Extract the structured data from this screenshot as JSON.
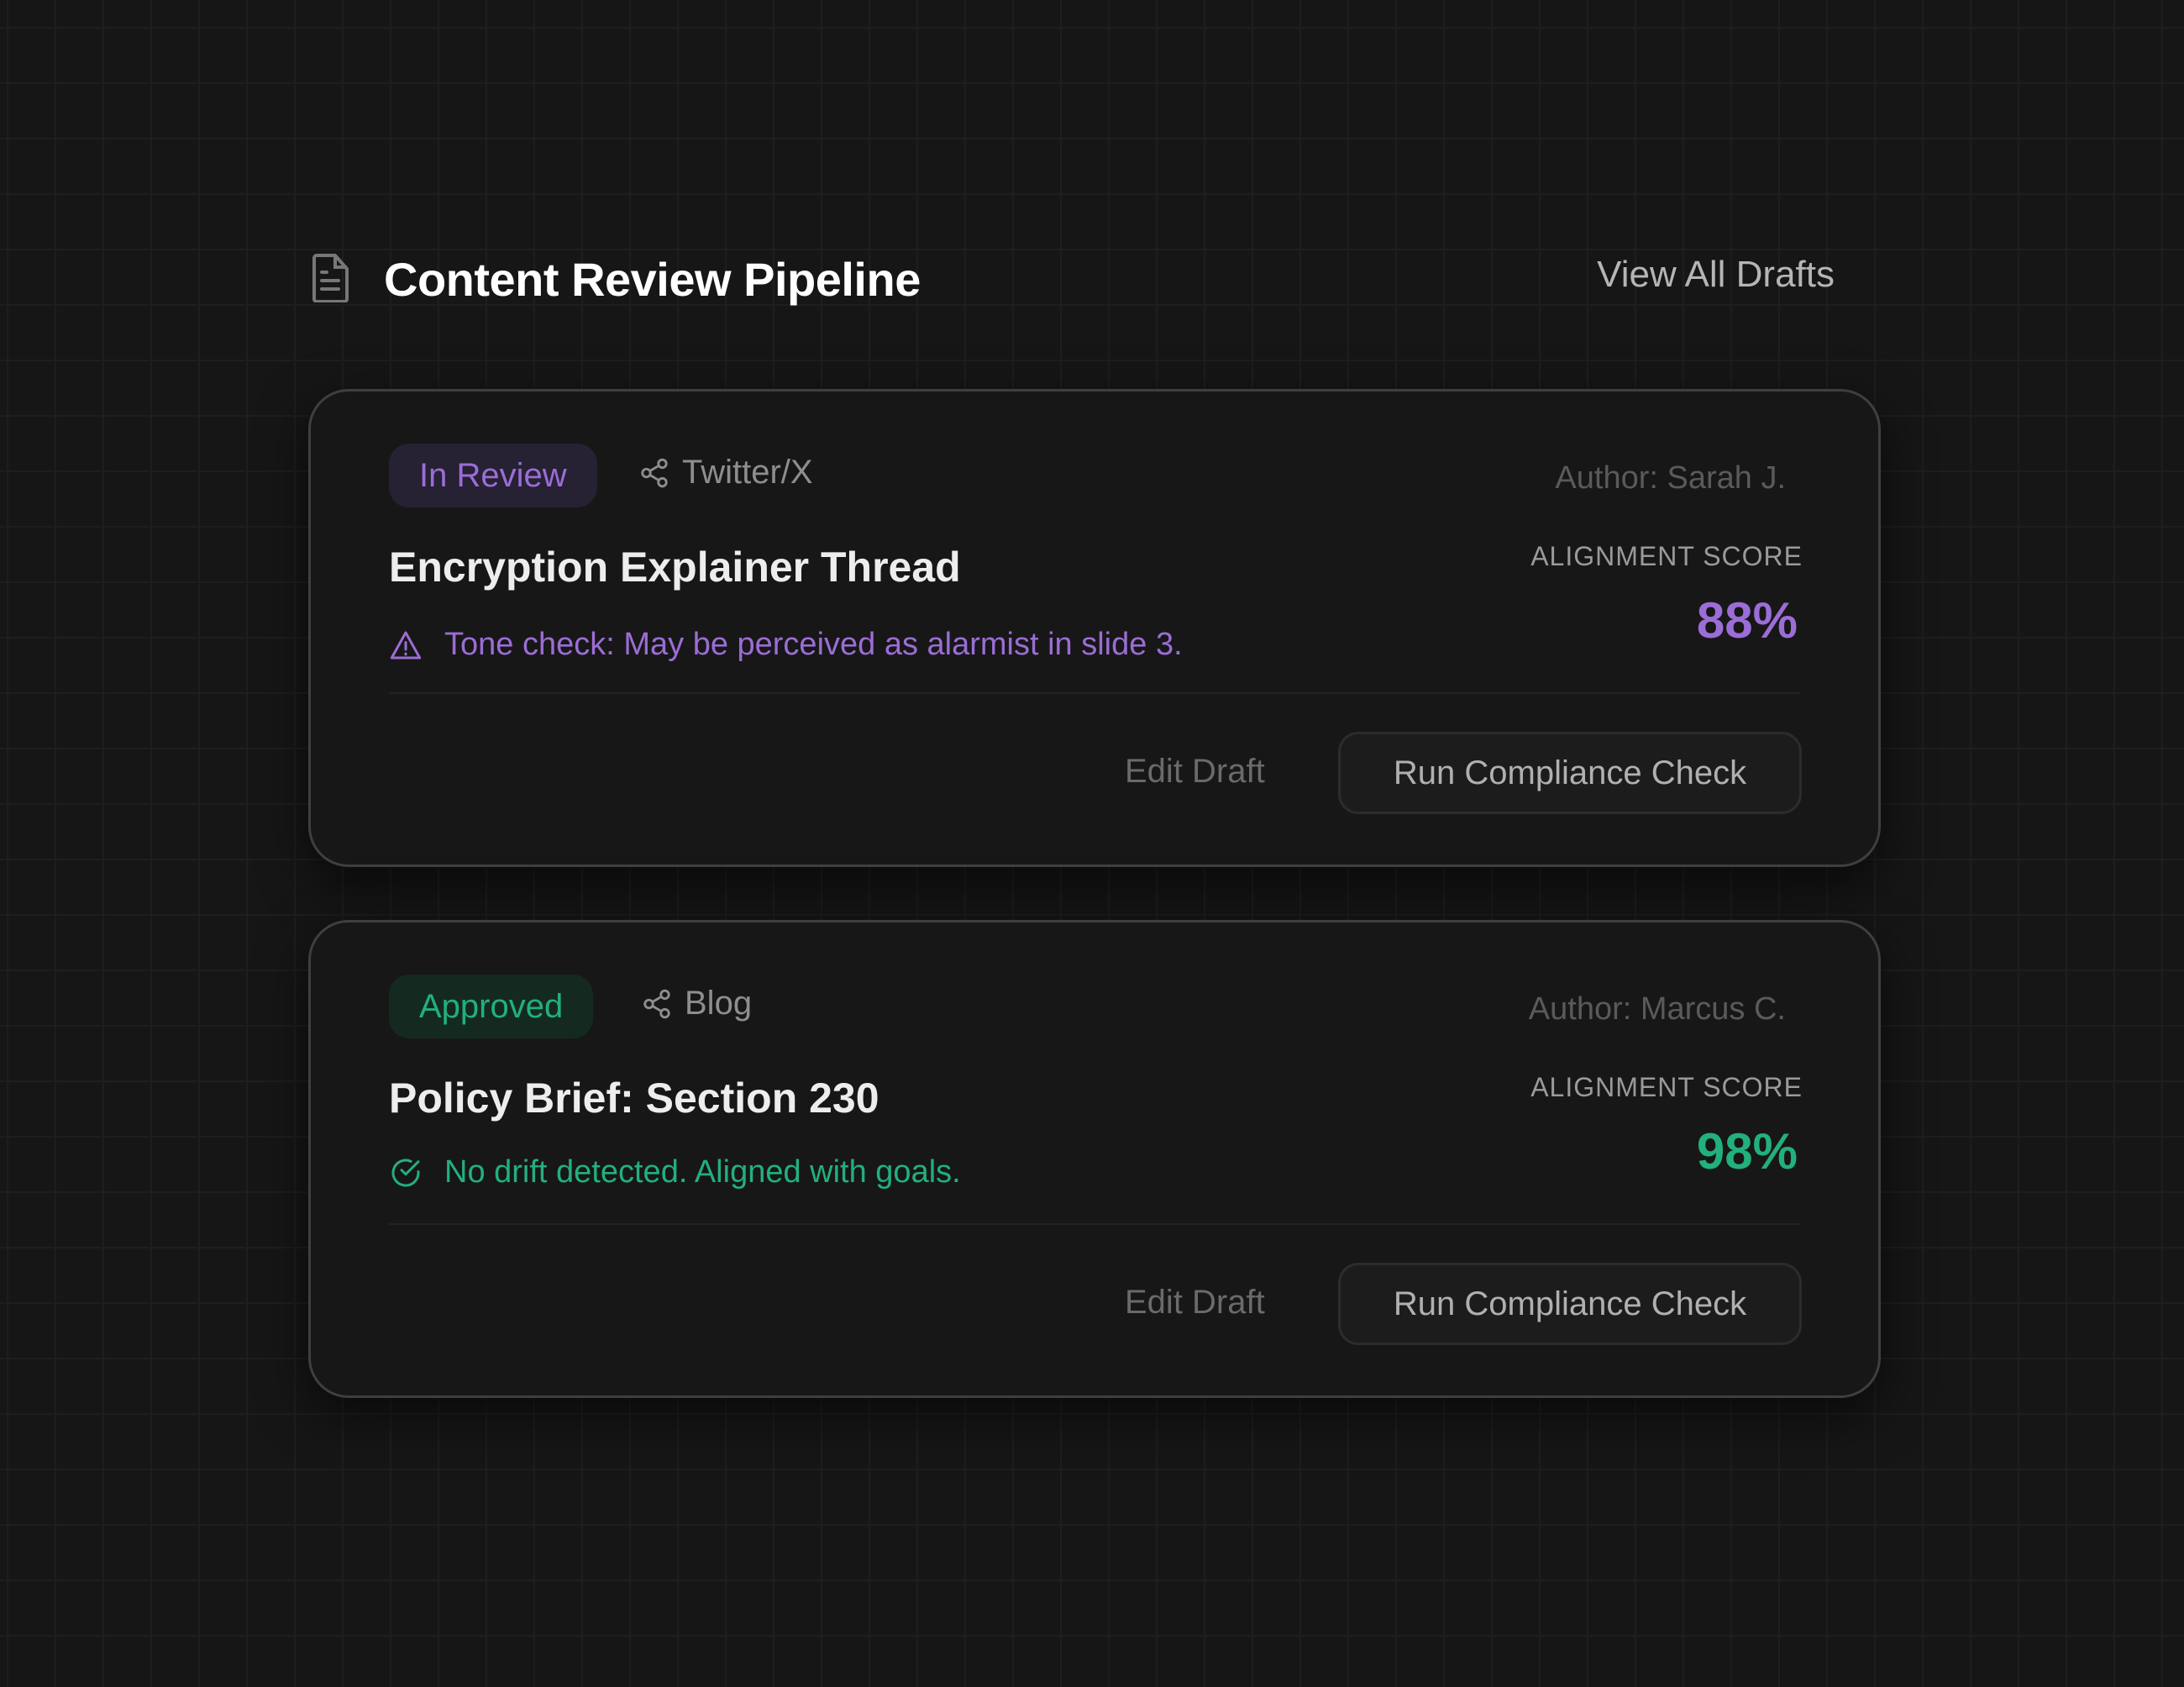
{
  "header": {
    "title": "Content Review Pipeline",
    "view_all": "View All Drafts",
    "icon": "document-icon"
  },
  "colors": {
    "purple": "#9b6dd6",
    "green": "#22b07d"
  },
  "drafts": [
    {
      "status": "In Review",
      "platform": "Twitter/X",
      "author": "Author: Sarah J.",
      "title": "Encryption Explainer Thread",
      "score_label": "ALIGNMENT SCORE",
      "score": "88%",
      "note": "Tone check: May be perceived as alarmist in slide 3.",
      "note_icon": "warning-icon",
      "edit": "Edit Draft",
      "run": "Run Compliance Check"
    },
    {
      "status": "Approved",
      "platform": "Blog",
      "author": "Author: Marcus C.",
      "title": "Policy Brief: Section 230",
      "score_label": "ALIGNMENT SCORE",
      "score": "98%",
      "note": "No drift detected. Aligned with goals.",
      "note_icon": "check-circle-icon",
      "edit": "Edit Draft",
      "run": "Run Compliance Check"
    }
  ]
}
